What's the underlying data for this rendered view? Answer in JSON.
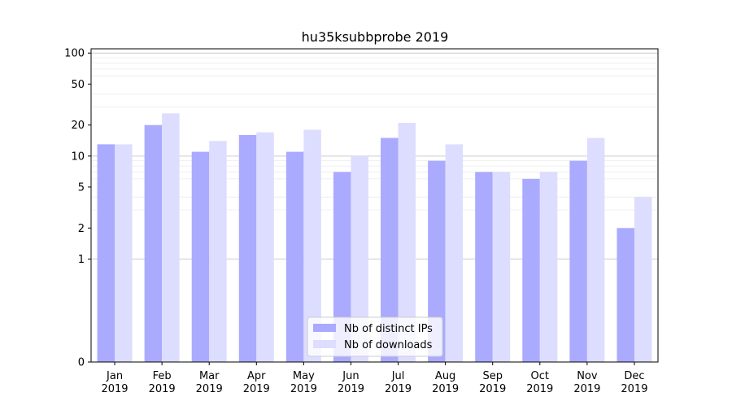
{
  "chart_data": {
    "type": "bar",
    "title": "hu35ksubbprobe 2019",
    "xlabel": "",
    "ylabel": "",
    "y_scale": "symlog",
    "ylim": [
      0,
      110
    ],
    "yticks": [
      0,
      1,
      2,
      5,
      10,
      20,
      50,
      100
    ],
    "grid": "horizontal",
    "legend_position": "bottom-center",
    "categories": [
      [
        "Jan",
        "2019"
      ],
      [
        "Feb",
        "2019"
      ],
      [
        "Mar",
        "2019"
      ],
      [
        "Apr",
        "2019"
      ],
      [
        "May",
        "2019"
      ],
      [
        "Jun",
        "2019"
      ],
      [
        "Jul",
        "2019"
      ],
      [
        "Aug",
        "2019"
      ],
      [
        "Sep",
        "2019"
      ],
      [
        "Oct",
        "2019"
      ],
      [
        "Nov",
        "2019"
      ],
      [
        "Dec",
        "2019"
      ]
    ],
    "series": [
      {
        "name": "Nb of distinct IPs",
        "color": "#aaaaff",
        "values": [
          13,
          20,
          11,
          16,
          11,
          7,
          15,
          9,
          7,
          6,
          9,
          2
        ]
      },
      {
        "name": "Nb of downloads",
        "color": "#ddddff",
        "values": [
          13,
          26,
          14,
          17,
          18,
          10,
          21,
          13,
          7,
          7,
          15,
          4
        ]
      }
    ]
  }
}
